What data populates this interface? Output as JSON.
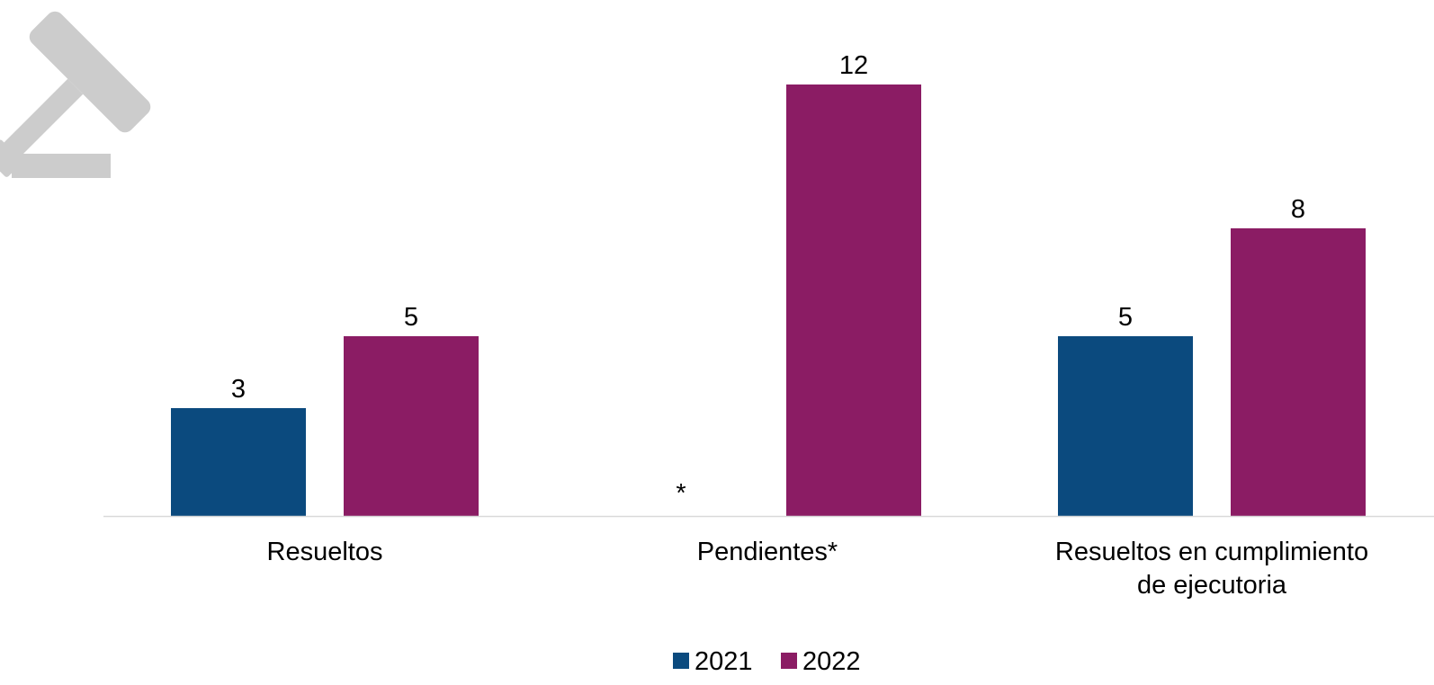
{
  "colors": {
    "series_2021": "#0B4A7E",
    "series_2022": "#8B1C64",
    "axis": "#D9D9D9",
    "icon": "#CCCCCC"
  },
  "icon": {
    "name": "gavel-icon"
  },
  "chart_data": {
    "type": "bar",
    "title": "",
    "xlabel": "",
    "ylabel": "",
    "ylim": [
      0,
      12.5
    ],
    "grid": false,
    "legend_position": "bottom-center",
    "categories": [
      "Resueltos",
      "Pendientes*",
      "Resueltos en cumplimiento de ejecutoria"
    ],
    "category_lines": [
      [
        "Resueltos"
      ],
      [
        "Pendientes*"
      ],
      [
        "Resueltos en cumplimiento",
        "de ejecutoria"
      ]
    ],
    "series": [
      {
        "name": "2021",
        "values": [
          3,
          null,
          5
        ],
        "labels": [
          "3",
          "*",
          "5"
        ]
      },
      {
        "name": "2022",
        "values": [
          5,
          12,
          8
        ],
        "labels": [
          "5",
          "12",
          "8"
        ]
      }
    ]
  }
}
